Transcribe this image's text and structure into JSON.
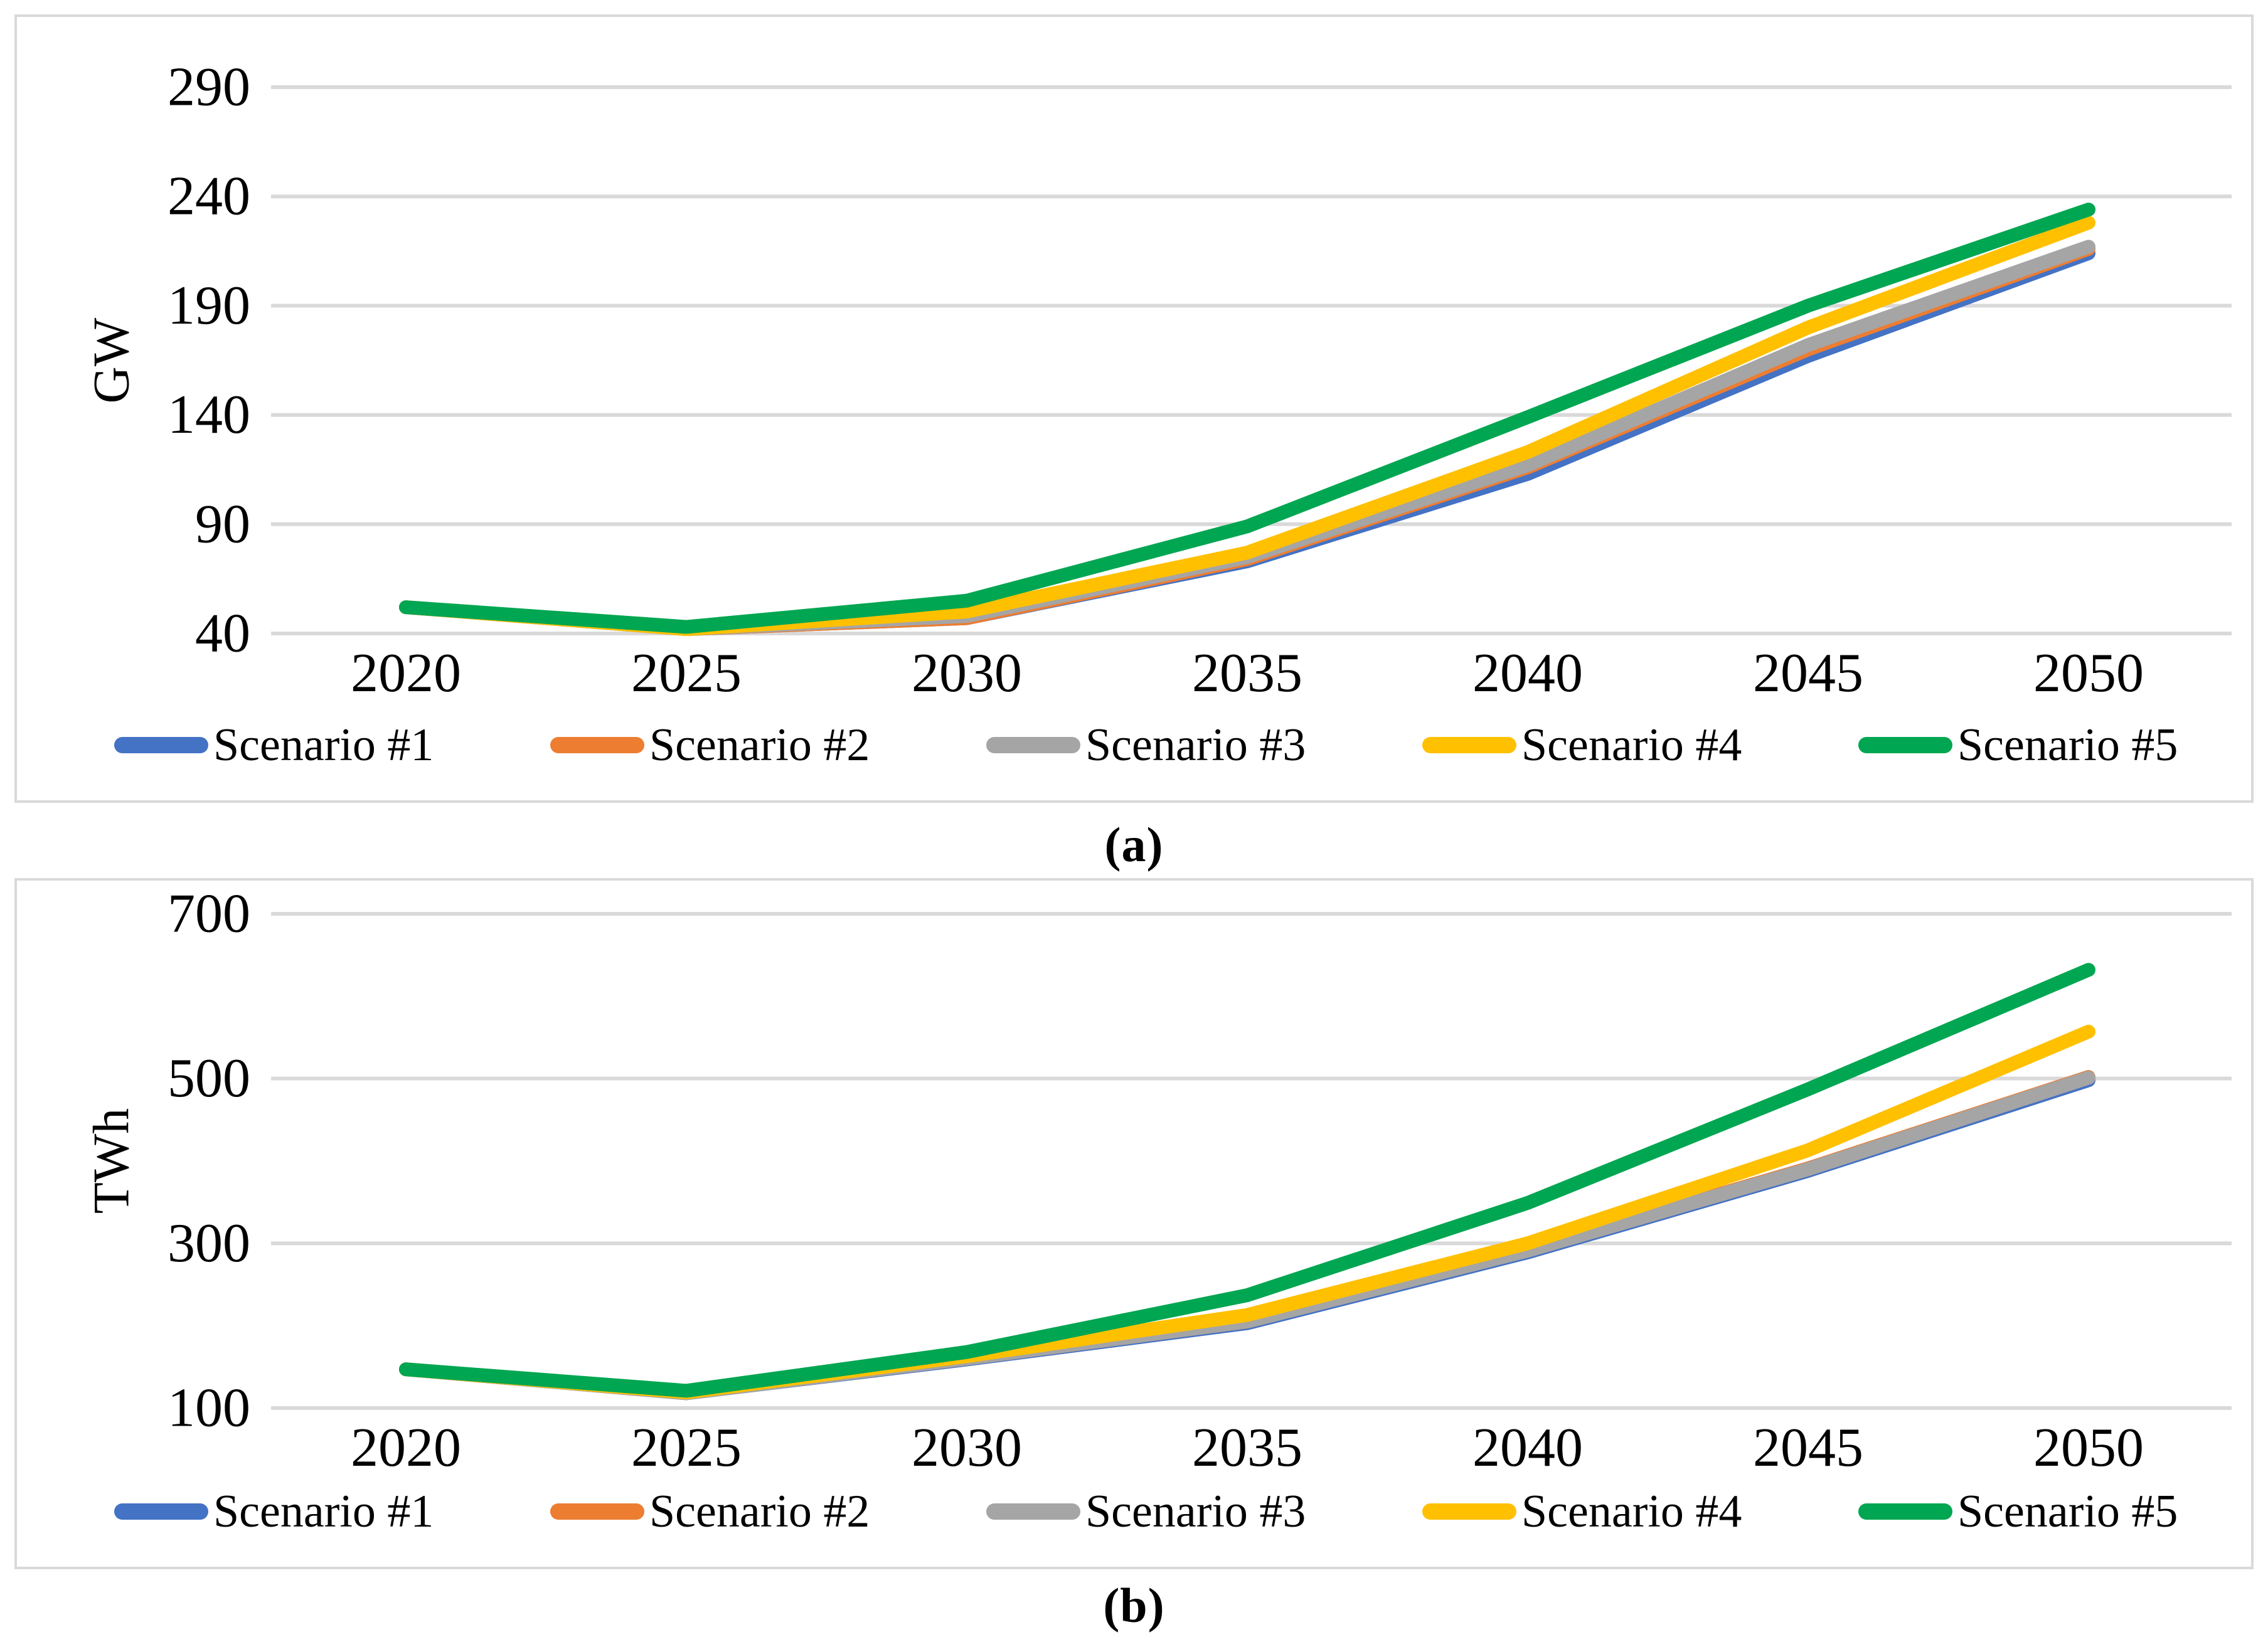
{
  "figure": {
    "captions": {
      "a": "(a)",
      "b": "(b)"
    }
  },
  "style": {
    "background": "#FFFFFF",
    "frame_color": "#D9D9D9",
    "grid_color": "#D9D9D9",
    "text_color": "#000000"
  },
  "chart_data": [
    {
      "id": "a",
      "type": "line",
      "title": "",
      "xlabel": "",
      "ylabel": "GW",
      "x": [
        2020,
        2025,
        2030,
        2035,
        2040,
        2045,
        2050
      ],
      "yticks": [
        40,
        90,
        140,
        190,
        240,
        290
      ],
      "ylim": [
        15,
        315
      ],
      "grid": true,
      "legend_position": "bottom",
      "series": [
        {
          "name": "Scenario #1",
          "color": "#4472C4",
          "values": [
            52,
            42,
            47,
            73,
            113,
            167,
            214
          ]
        },
        {
          "name": "Scenario #2",
          "color": "#ED7D31",
          "values": [
            52,
            42,
            47,
            74,
            116,
            170,
            216
          ]
        },
        {
          "name": "Scenario #3",
          "color": "#A5A5A5",
          "values": [
            52,
            42,
            48,
            75,
            117,
            172,
            217
          ]
        },
        {
          "name": "Scenario #4",
          "color": "#FFC000",
          "values": [
            52,
            42,
            50,
            77,
            123,
            180,
            228
          ]
        },
        {
          "name": "Scenario #5",
          "color": "#00A651",
          "values": [
            52,
            43,
            55,
            89,
            139,
            190,
            234
          ]
        }
      ]
    },
    {
      "id": "b",
      "type": "line",
      "title": "",
      "xlabel": "",
      "ylabel": "TWh",
      "x": [
        2020,
        2025,
        2030,
        2035,
        2040,
        2045,
        2050
      ],
      "yticks": [
        100,
        300,
        500,
        700
      ],
      "ylim": [
        0,
        780
      ],
      "grid": true,
      "legend_position": "bottom",
      "series": [
        {
          "name": "Scenario #1",
          "color": "#4472C4",
          "values": [
            147,
            118,
            159,
            203,
            289,
            388,
            498
          ]
        },
        {
          "name": "Scenario #2",
          "color": "#ED7D31",
          "values": [
            147,
            118,
            160,
            205,
            292,
            391,
            502
          ]
        },
        {
          "name": "Scenario #3",
          "color": "#A5A5A5",
          "values": [
            147,
            118,
            160,
            205,
            291,
            390,
            501
          ]
        },
        {
          "name": "Scenario #4",
          "color": "#FFC000",
          "values": [
            147,
            119,
            163,
            213,
            300,
            413,
            557
          ]
        },
        {
          "name": "Scenario #5",
          "color": "#00A651",
          "values": [
            147,
            121,
            168,
            237,
            349,
            487,
            632
          ]
        }
      ]
    }
  ]
}
